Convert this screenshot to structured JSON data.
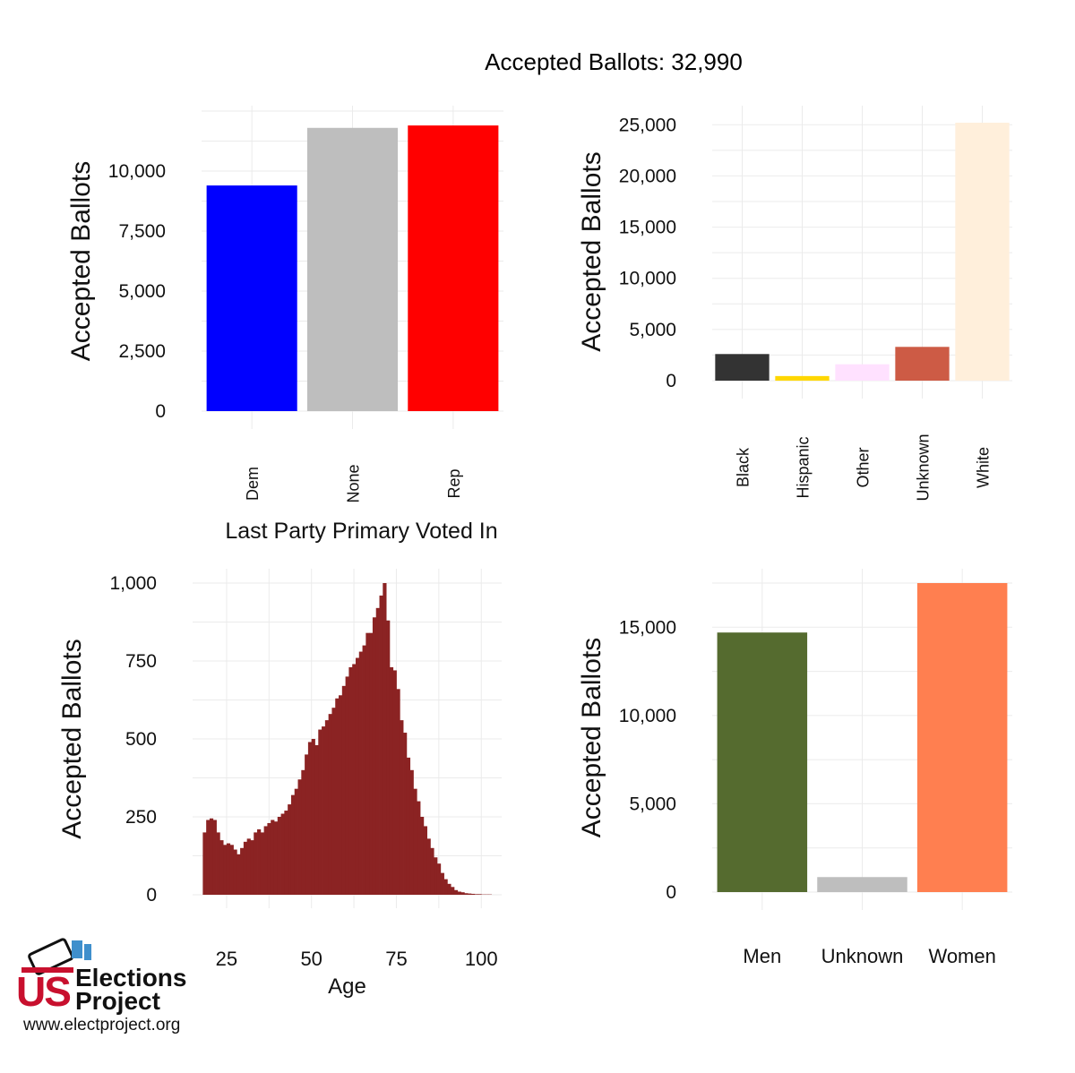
{
  "header": {
    "title": "Accepted Ballots:  32,990"
  },
  "chart_data": [
    {
      "id": "party",
      "type": "bar",
      "categories": [
        "Dem",
        "None",
        "Rep"
      ],
      "values": [
        9400,
        11800,
        11900
      ],
      "colors": [
        "#0000ff",
        "#bebebe",
        "#ff0000"
      ],
      "xlabel": "Last Party Primary Voted In",
      "ylabel": "Accepted Ballots",
      "yticks": [
        0,
        2500,
        5000,
        7500,
        10000
      ],
      "ytick_labels": [
        "0",
        "2,500",
        "5,000",
        "7,500",
        "10,000"
      ],
      "ylim": [
        0,
        12500
      ],
      "grid": true
    },
    {
      "id": "race",
      "type": "bar",
      "categories": [
        "Black",
        "Hispanic",
        "Other",
        "Unknown",
        "White"
      ],
      "values": [
        2600,
        450,
        1600,
        3300,
        25200
      ],
      "colors": [
        "#333333",
        "#ffd700",
        "#ffe1ff",
        "#cd5b45",
        "#ffefdb"
      ],
      "xlabel": "",
      "ylabel": "Accepted Ballots",
      "yticks": [
        0,
        5000,
        10000,
        15000,
        20000,
        25000
      ],
      "ytick_labels": [
        "0",
        "5,000",
        "10,000",
        "15,000",
        "20,000",
        "25,000"
      ],
      "ylim": [
        0,
        25200
      ],
      "grid": true
    },
    {
      "id": "age",
      "type": "bar",
      "xlabel": "Age",
      "ylabel": "Accepted Ballots",
      "color": "#8b2323",
      "x_start": 18,
      "bin_width": 1,
      "values": [
        200,
        240,
        245,
        240,
        200,
        175,
        160,
        165,
        160,
        145,
        130,
        150,
        170,
        180,
        175,
        200,
        210,
        200,
        220,
        230,
        240,
        235,
        250,
        260,
        270,
        290,
        320,
        340,
        370,
        400,
        450,
        490,
        500,
        480,
        530,
        540,
        560,
        580,
        600,
        630,
        640,
        670,
        700,
        730,
        740,
        760,
        780,
        800,
        840,
        840,
        890,
        920,
        960,
        1000,
        880,
        730,
        720,
        660,
        560,
        520,
        440,
        400,
        340,
        300,
        250,
        220,
        180,
        150,
        120,
        100,
        70,
        50,
        35,
        25,
        15,
        10,
        8,
        5,
        4,
        3,
        2,
        2,
        1,
        1,
        1
      ],
      "xticks": [
        25,
        50,
        75,
        100
      ],
      "xtick_labels": [
        "25",
        "50",
        "75",
        "100"
      ],
      "xlim": [
        15,
        106
      ],
      "yticks": [
        0,
        250,
        500,
        750,
        1000
      ],
      "ytick_labels": [
        "0",
        "250",
        "500",
        "750",
        "1,000"
      ],
      "ylim": [
        0,
        1000
      ],
      "grid": true
    },
    {
      "id": "gender",
      "type": "bar",
      "categories": [
        "Men",
        "Unknown",
        "Women"
      ],
      "values": [
        14700,
        850,
        17500
      ],
      "colors": [
        "#556b2f",
        "#bebebe",
        "#ff7f50"
      ],
      "xlabel": "",
      "ylabel": "Accepted Ballots",
      "yticks": [
        0,
        5000,
        10000,
        15000
      ],
      "ytick_labels": [
        "0",
        "5,000",
        "10,000",
        "15,000"
      ],
      "ylim": [
        0,
        17500
      ],
      "grid": true
    }
  ],
  "logo": {
    "word_us": "US",
    "line1": "Elections",
    "line2": "Project",
    "url": "www.electproject.org"
  }
}
